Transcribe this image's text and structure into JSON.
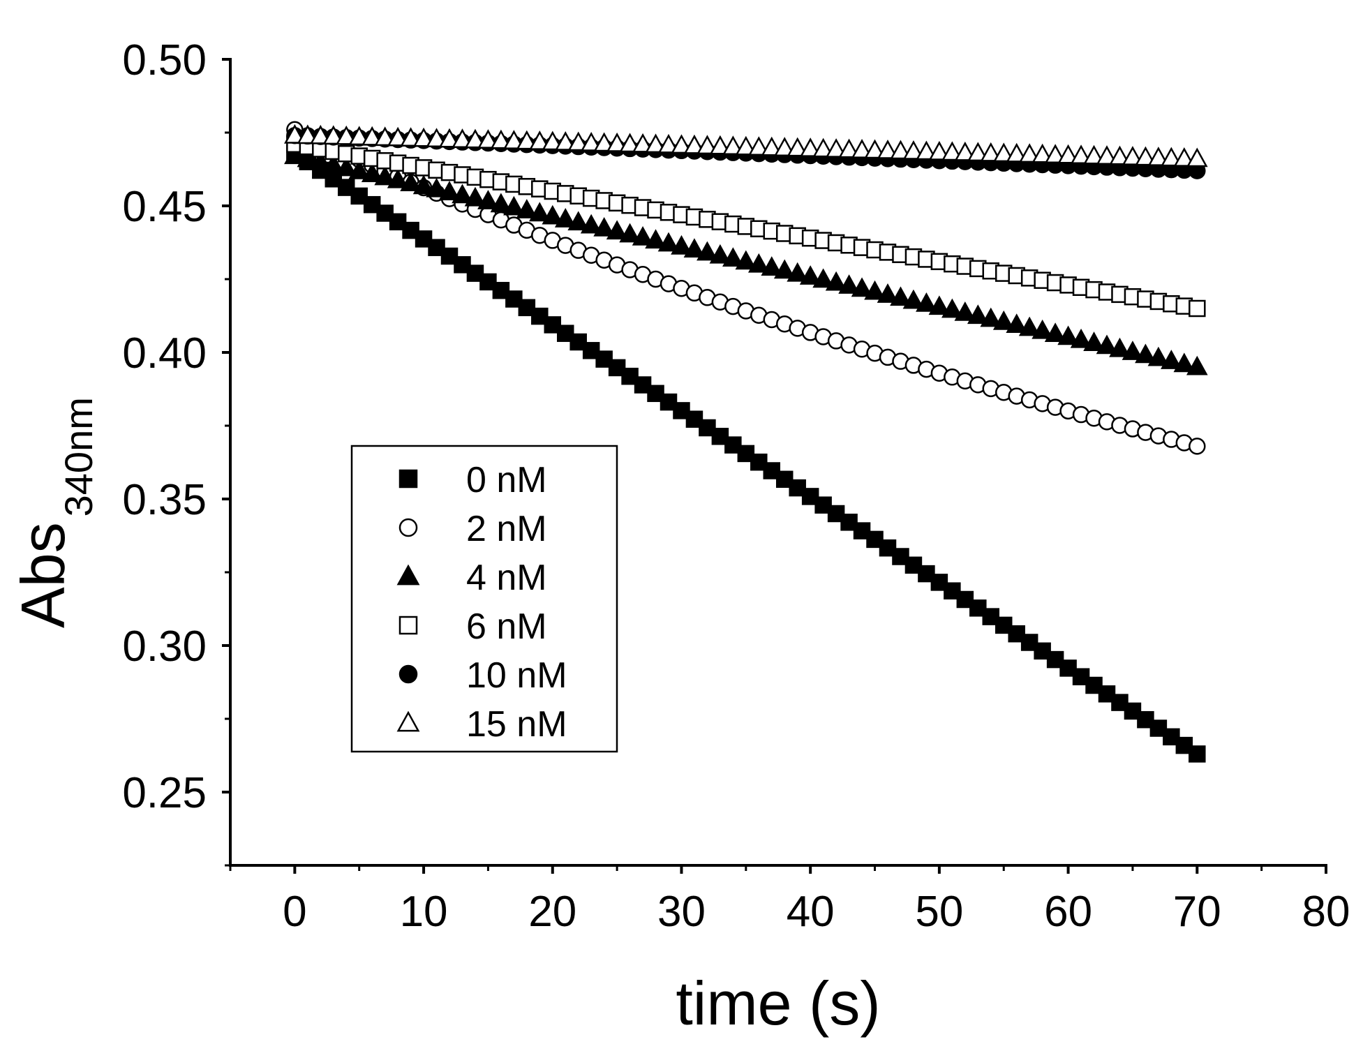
{
  "chart_data": {
    "type": "scatter",
    "title": "",
    "xlabel": "time (s)",
    "ylabel_main": "Abs",
    "ylabel_sub": "340nm",
    "xlim": [
      -5,
      80
    ],
    "ylim": [
      0.225,
      0.5
    ],
    "x_ticks": [
      0,
      10,
      20,
      30,
      40,
      50,
      60,
      70,
      80
    ],
    "x_tick_labels": [
      "0",
      "10",
      "20",
      "30",
      "40",
      "50",
      "60",
      "70",
      "80"
    ],
    "y_ticks": [
      0.25,
      0.3,
      0.35,
      0.4,
      0.45,
      0.5
    ],
    "y_tick_labels": [
      "0.25",
      "0.30",
      "0.35",
      "0.40",
      "0.45",
      "0.50"
    ],
    "grid": false,
    "legend_position": "center-left",
    "x": {
      "start": 0,
      "end": 70,
      "step": 1
    },
    "series": [
      {
        "name": "0 nM",
        "marker": "square",
        "filled": true,
        "start": 0.468,
        "end": 0.263,
        "shape": "linear"
      },
      {
        "name": "2 nM",
        "marker": "circle",
        "filled": false,
        "start": 0.476,
        "end": 0.368,
        "shape": "curved"
      },
      {
        "name": "4 nM",
        "marker": "triangle",
        "filled": true,
        "start": 0.467,
        "end": 0.395,
        "shape": "linear"
      },
      {
        "name": "6 nM",
        "marker": "square",
        "filled": false,
        "start": 0.471,
        "end": 0.415,
        "shape": "linear"
      },
      {
        "name": "10 nM",
        "marker": "circle",
        "filled": true,
        "start": 0.474,
        "end": 0.462,
        "shape": "linear"
      },
      {
        "name": "15 nM",
        "marker": "triangle",
        "filled": false,
        "start": 0.474,
        "end": 0.466,
        "shape": "linear"
      }
    ]
  },
  "colors": {
    "ink": "#000000",
    "background": "#ffffff"
  }
}
